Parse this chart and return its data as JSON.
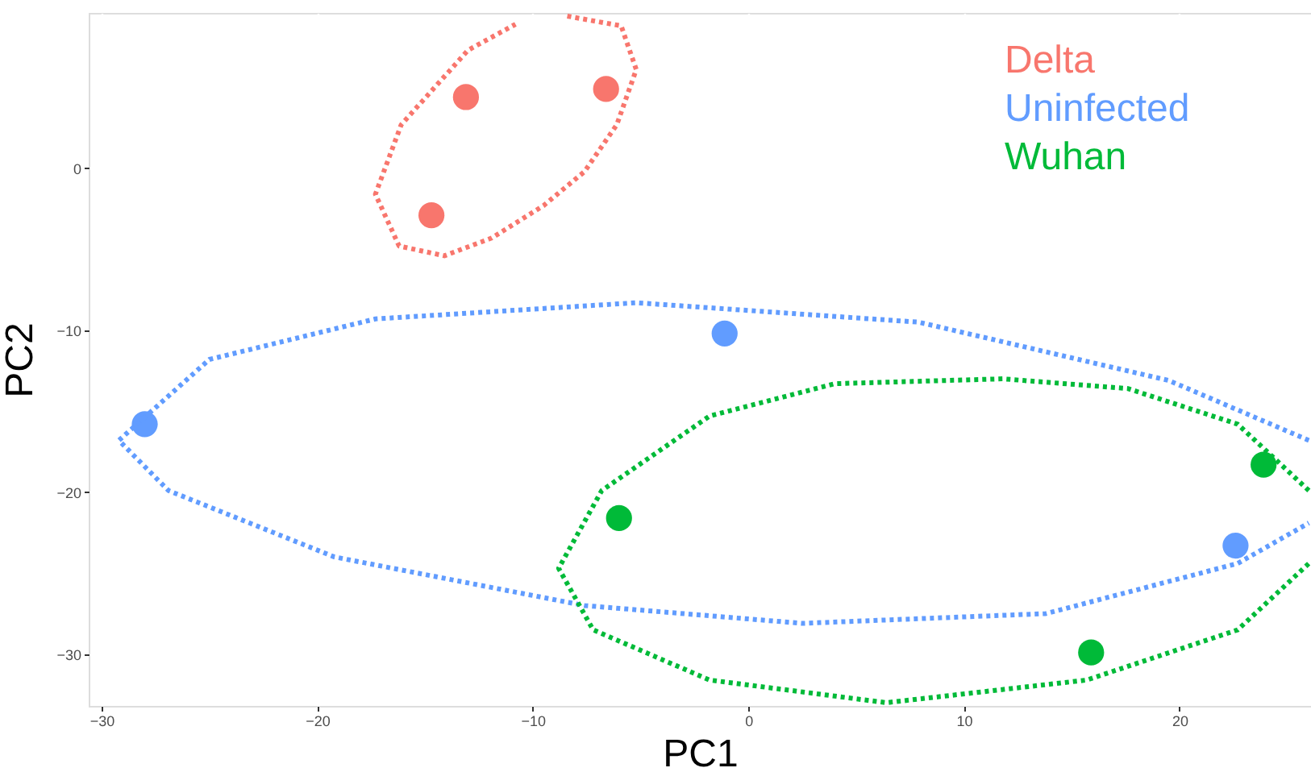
{
  "chart_data": {
    "type": "scatter",
    "xlabel": "PC1",
    "ylabel": "PC2",
    "xlim": [
      -30.6,
      26.1
    ],
    "ylim": [
      -33.2,
      9.6
    ],
    "xticks": [
      -30,
      -20,
      -10,
      0,
      10,
      20
    ],
    "yticks": [
      -30,
      -20,
      -10,
      0
    ],
    "grid": true,
    "legend": "top right",
    "marker": "circle",
    "series": [
      {
        "name": "Delta",
        "color": "#f8766d",
        "x": [
          -13.1,
          -6.6,
          -14.7
        ],
        "values": [
          4.4,
          4.9,
          -2.9
        ]
      },
      {
        "name": "Uninfected",
        "color": "#619cff",
        "x": [
          -28.0,
          -1.1,
          22.6
        ],
        "values": [
          -15.8,
          -10.2,
          -23.3
        ]
      },
      {
        "name": "Wuhan",
        "color": "#00ba38",
        "x": [
          -6.0,
          23.9,
          15.9
        ],
        "values": [
          -21.6,
          -18.3,
          -29.9
        ]
      },
      {
        "type": "line",
        "line_style": "dotted",
        "marker": "none",
        "color": "#f8766d",
        "x": [
          -8.4,
          -5.9,
          -5.2,
          -6.1,
          -7.6,
          -9.5,
          -11.9,
          -14.1,
          -16.2,
          -17.3,
          -16.1,
          -13.0,
          -10.8
        ],
        "values": [
          9.4,
          8.8,
          6.1,
          2.7,
          -0.2,
          -2.3,
          -4.3,
          -5.4,
          -4.8,
          -1.6,
          2.7,
          7.3,
          8.9
        ]
      },
      {
        "type": "line",
        "line_style": "dotted",
        "marker": "none",
        "color": "#619cff",
        "x": [
          26.0,
          19.5,
          7.9,
          -5.2,
          -17.3,
          -25.0,
          -29.2,
          -26.9,
          -19.2,
          -7.6,
          2.5,
          13.8,
          22.7,
          26.0
        ],
        "values": [
          -16.8,
          -13.1,
          -9.5,
          -8.3,
          -9.3,
          -11.8,
          -16.8,
          -19.9,
          -24.0,
          -27.0,
          -28.1,
          -27.5,
          -24.4,
          -21.9
        ]
      },
      {
        "type": "line",
        "line_style": "dotted",
        "marker": "none",
        "color": "#00ba38",
        "x": [
          26.0,
          22.7,
          17.6,
          11.8,
          4.0,
          -1.8,
          -6.8,
          -8.8,
          -7.2,
          -1.8,
          6.4,
          15.7,
          22.7,
          26.0
        ],
        "values": [
          -19.9,
          -15.8,
          -13.6,
          -13.0,
          -13.3,
          -15.3,
          -19.9,
          -24.7,
          -28.5,
          -31.6,
          -33.0,
          -31.6,
          -28.5,
          -24.4
        ]
      }
    ]
  }
}
